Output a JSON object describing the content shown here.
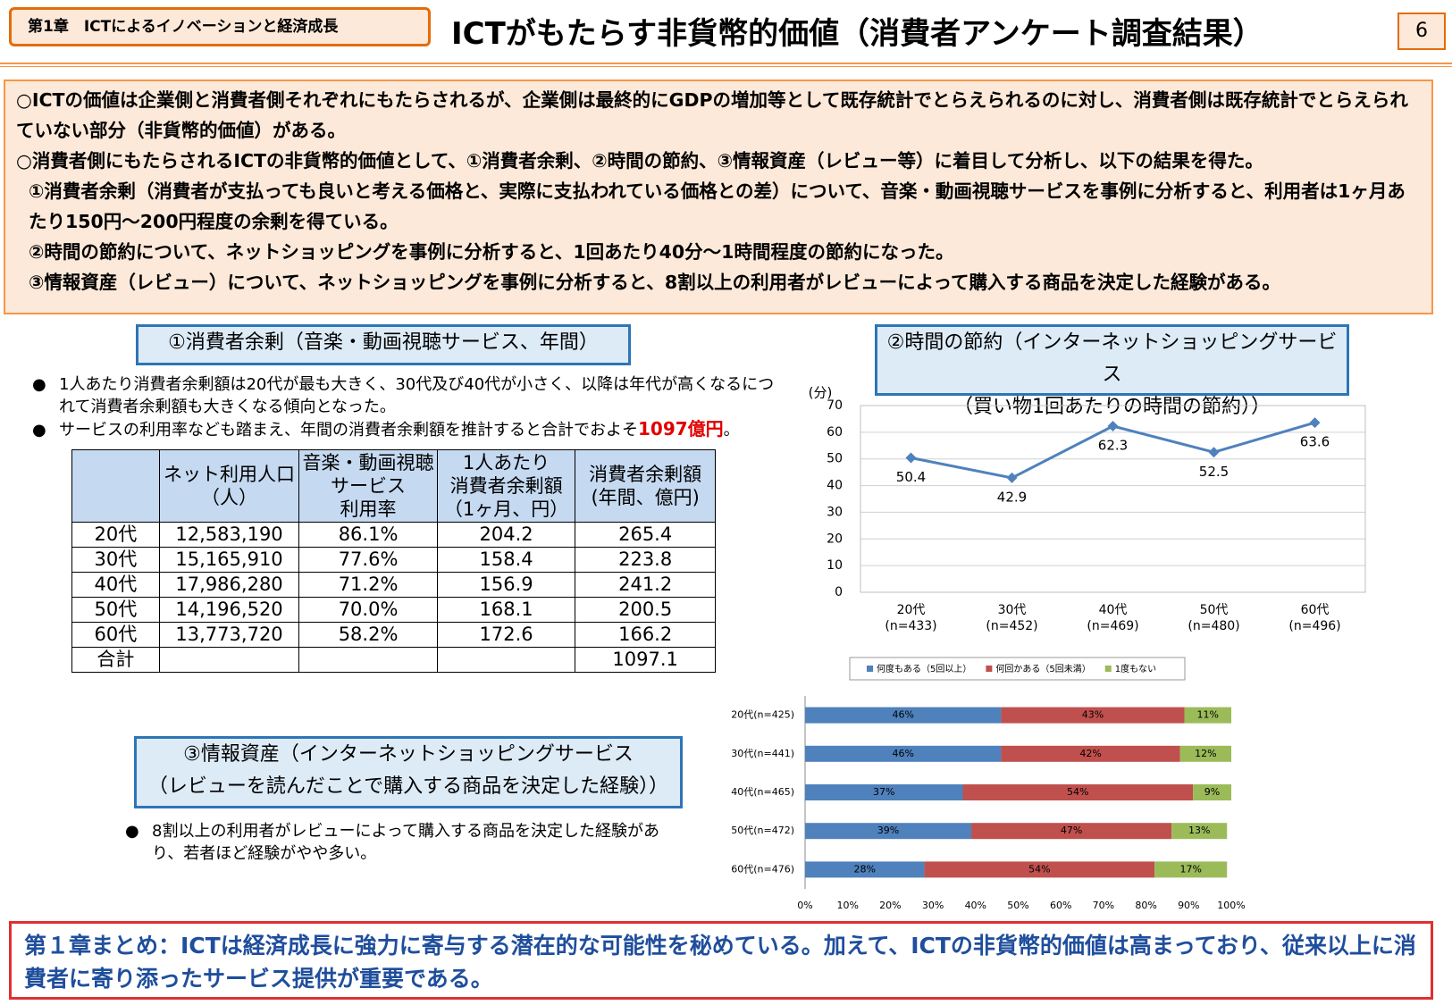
{
  "header": {
    "chapter": "第1章　ICTによるイノベーションと経済成長",
    "title": "ICTがもたらす非貨幣的価値（消費者アンケート調査結果）",
    "page": "6"
  },
  "summary": [
    "○ICTの価値は企業側と消費者側それぞれにもたらされるが、企業側は最終的にGDPの増加等として既存統計でとらえられるのに対し、消費者側は既存統計でとらえられていない部分（非貨幣的価値）がある。",
    "○消費者側にもたらされるICTの非貨幣的価値として、①消費者余剰、②時間の節約、③情報資産（レビュー等）に着目して分析し、以下の結果を得た。",
    "①消費者余剰（消費者が支払っても良いと考える価格と、実際に支払われている価格との差）について、音楽・動画視聴サービスを事例に分析すると、利用者は1ヶ月あたり150円～200円程度の余剰を得ている。",
    "②時間の節約について、ネットショッピングを事例に分析すると、1回あたり40分～1時間程度の節約になった。",
    "③情報資産（レビュー）について、ネットショッピングを事例に分析すると、8割以上の利用者がレビューによって購入する商品を決定した経験がある。"
  ],
  "section1": {
    "title": "①消費者余剰（音楽・動画視聴サービス、年間）",
    "bullet1": "1人あたり消費者余剰額は20代が最も大きく、30代及び40代が小さく、以降は年代が高くなるにつれて消費者余剰額も大きくなる傾向となった。",
    "bullet2": {
      "text": "サービスの利用率なども踏まえ、年間の消費者余剰額を推計すると合計でおよそ",
      "highlight": "1097億円",
      "end": "。"
    },
    "table": {
      "header": [
        null,
        [
          "ネット利用人口",
          "（人）"
        ],
        [
          "音楽・動画視聴",
          "サービス",
          "利用率"
        ],
        [
          "1人あたり",
          "消費者余剰額",
          "（1ヶ月、円）"
        ],
        [
          "消費者余剰額",
          "(年間、億円)"
        ]
      ],
      "rows": [
        [
          "20代",
          "12,583,190",
          "86.1%",
          "204.2",
          "265.4"
        ],
        [
          "30代",
          "15,165,910",
          "77.6%",
          "158.4",
          "223.8"
        ],
        [
          "40代",
          "17,986,280",
          "71.2%",
          "156.9",
          "241.2"
        ],
        [
          "50代",
          "14,196,520",
          "70.0%",
          "168.1",
          "200.5"
        ],
        [
          "60代",
          "13,773,720",
          "58.2%",
          "172.6",
          "166.2"
        ],
        [
          "合計",
          null,
          null,
          null,
          "1097.1"
        ]
      ]
    }
  },
  "section2": {
    "title": [
      "②時間の節約（インターネットショッピングサービス",
      "（買い物1回あたりの時間の節約））"
    ]
  },
  "section3": {
    "title": [
      "③情報資産（インターネットショッピングサービス",
      "（レビューを読んだことで購入する商品を決定した経験））"
    ],
    "bullet": "8割以上の利用者がレビューによって購入する商品を決定した経験があり、若者ほど経験がやや多い。"
  },
  "chart_data": [
    {
      "type": "line",
      "y_label": "(分)",
      "categories": [
        "20代",
        "30代",
        "40代",
        "50代",
        "60代"
      ],
      "sample_sizes": [
        "(n=433)",
        "(n=452)",
        "(n=469)",
        "(n=480)",
        "(n=496)"
      ],
      "values": [
        50.4,
        42.9,
        62.3,
        52.5,
        63.6
      ],
      "color": "#4f81bd",
      "ylim": [
        0,
        70
      ],
      "yticks": [
        0,
        10,
        20,
        30,
        40,
        50,
        60,
        70
      ],
      "grid": true
    },
    {
      "type": "stacked-barh",
      "categories": [
        "20代(n=425)",
        "30代(n=441)",
        "40代(n=465)",
        "50代(n=472)",
        "60代(n=476)"
      ],
      "series": [
        {
          "name": "何度もある（5回以上）",
          "color": "#4f81bd",
          "values": [
            46,
            46,
            37,
            39,
            28
          ],
          "value_labels": [
            "46%",
            "46%",
            "37%",
            "39%",
            "28%"
          ]
        },
        {
          "name": "何回かある（5回未満）",
          "color": "#c0504d",
          "values": [
            43,
            42,
            54,
            47,
            54
          ],
          "value_labels": [
            "43%",
            "42%",
            "54%",
            "47%",
            "54%"
          ]
        },
        {
          "name": "1度もない",
          "color": "#9bbb59",
          "values": [
            11,
            12,
            9,
            13,
            17
          ],
          "value_labels": [
            "11%",
            "12%",
            "9%",
            "13%",
            "17%"
          ]
        }
      ],
      "xlim": [
        0,
        100
      ],
      "xticks": [
        {
          "value": 0,
          "label": "0%"
        },
        {
          "value": 10,
          "label": "10%"
        },
        {
          "value": 20,
          "label": "20%"
        },
        {
          "value": 30,
          "label": "30%"
        },
        {
          "value": 40,
          "label": "40%"
        },
        {
          "value": 50,
          "label": "50%"
        },
        {
          "value": 60,
          "label": "60%"
        },
        {
          "value": 70,
          "label": "70%"
        },
        {
          "value": 80,
          "label": "80%"
        },
        {
          "value": 90,
          "label": "90%"
        },
        {
          "value": 100,
          "label": "100%"
        }
      ],
      "legend": "top"
    }
  ],
  "conclusion": "第１章まとめ：ICTは経済成長に強力に寄与する潜在的な可能性を秘めている。加えて、ICTの非貨幣的価値は高まっており、従来以上に消費者に寄り添ったサービス提供が重要である。"
}
